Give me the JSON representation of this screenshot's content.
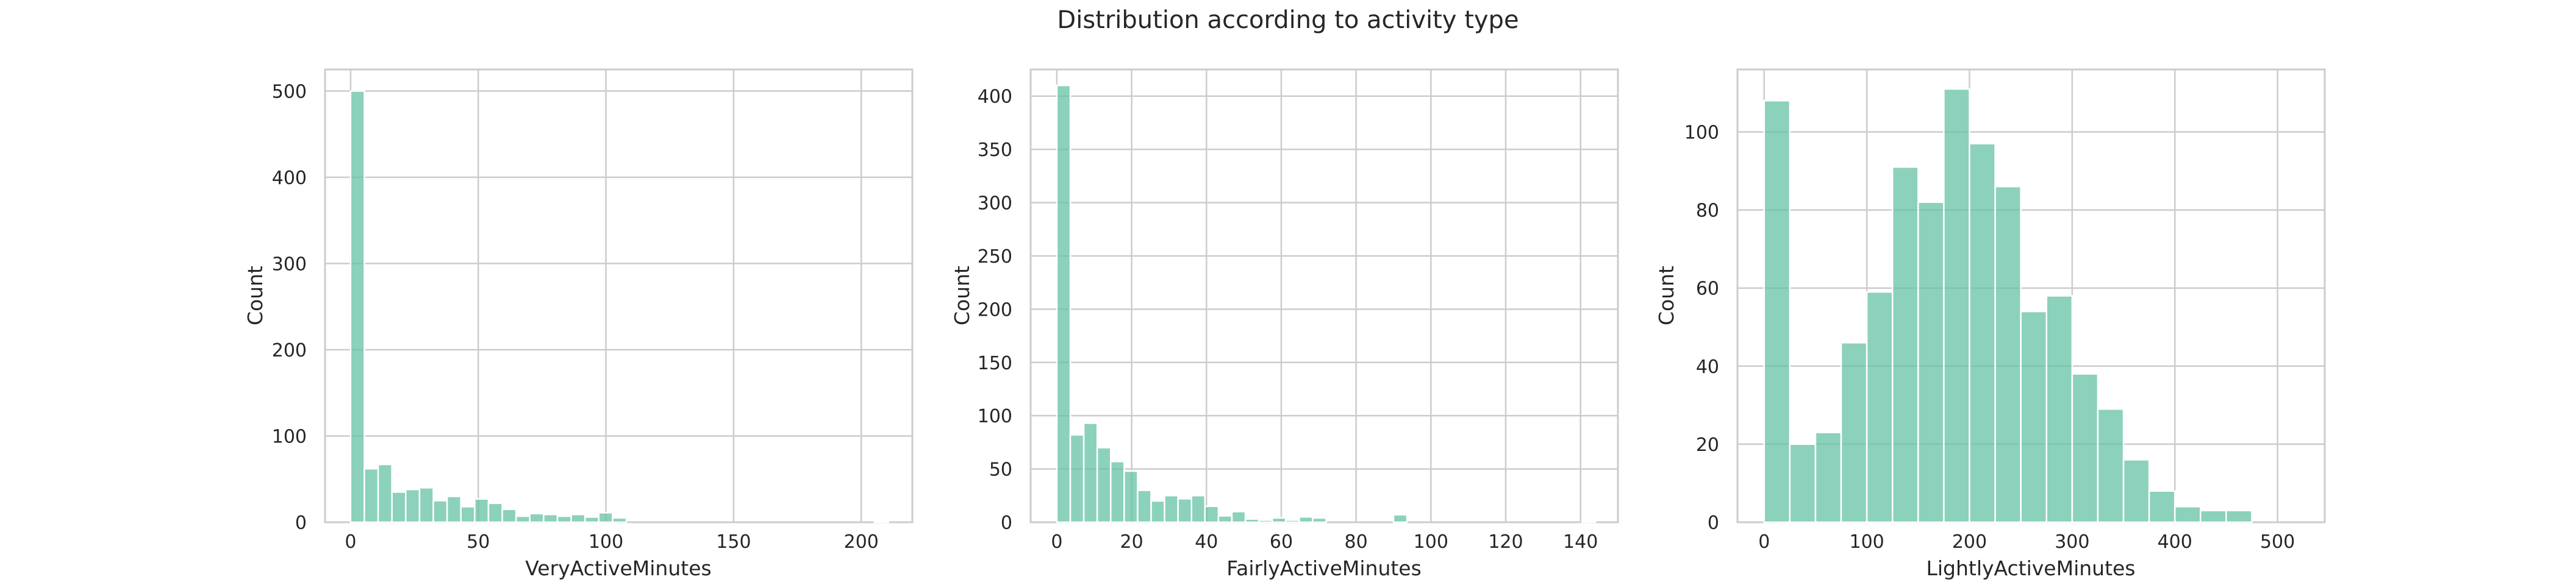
{
  "title": "Distribution according to activity type",
  "bar_color": "#66c2a5",
  "chart_data": [
    {
      "type": "bar",
      "subtype": "histogram",
      "xlabel": "VeryActiveMinutes",
      "ylabel": "Count",
      "xlim": [
        -10,
        220
      ],
      "ylim": [
        0,
        525
      ],
      "xticks": [
        0,
        50,
        100,
        150,
        200
      ],
      "yticks": [
        0,
        100,
        200,
        300,
        400,
        500
      ],
      "bin_width": 5.4,
      "bin_start": 0,
      "counts": [
        500,
        62,
        67,
        35,
        38,
        40,
        25,
        30,
        18,
        27,
        22,
        15,
        7,
        10,
        9,
        7,
        9,
        6,
        11,
        5,
        0,
        0,
        0,
        0,
        0,
        0,
        0,
        0,
        0,
        0,
        0,
        0,
        0,
        0,
        0,
        0,
        0,
        0,
        1
      ],
      "grid": true
    },
    {
      "type": "bar",
      "subtype": "histogram",
      "xlabel": "FairlyActiveMinutes",
      "ylabel": "Count",
      "xlim": [
        -7,
        150
      ],
      "ylim": [
        0,
        425
      ],
      "xticks": [
        0,
        20,
        40,
        60,
        80,
        100,
        120,
        140
      ],
      "yticks": [
        0,
        50,
        100,
        150,
        200,
        250,
        300,
        350,
        400
      ],
      "bin_width": 3.6,
      "bin_start": 0,
      "counts": [
        410,
        82,
        93,
        70,
        57,
        48,
        30,
        20,
        25,
        22,
        25,
        15,
        6,
        10,
        3,
        2,
        4,
        2,
        5,
        4,
        0,
        0,
        0,
        0,
        0,
        7,
        0,
        0,
        0,
        0,
        0,
        0,
        0,
        0,
        0,
        0,
        0,
        0,
        0,
        1
      ],
      "grid": true
    },
    {
      "type": "bar",
      "subtype": "histogram",
      "xlabel": "LightlyActiveMinutes",
      "ylabel": "Count",
      "xlim": [
        -26,
        546
      ],
      "ylim": [
        0,
        116
      ],
      "xticks": [
        0,
        100,
        200,
        300,
        400,
        500
      ],
      "yticks": [
        0,
        20,
        40,
        60,
        80,
        100
      ],
      "bin_width": 25,
      "bin_start": 0,
      "counts": [
        108,
        20,
        23,
        46,
        59,
        91,
        82,
        111,
        97,
        86,
        54,
        58,
        38,
        29,
        16,
        8,
        4,
        3,
        3
      ],
      "grid": true
    }
  ]
}
